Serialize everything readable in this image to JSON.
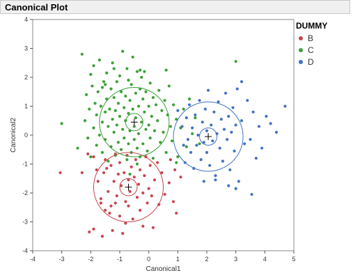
{
  "title": "Canonical Plot",
  "legend": {
    "title": "DUMMY",
    "items": [
      {
        "label": "B",
        "color": "#c8444d"
      },
      {
        "label": "C",
        "color": "#3aa135"
      },
      {
        "label": "D",
        "color": "#4472c4"
      }
    ]
  },
  "chart_data": {
    "type": "scatter",
    "xlabel": "Canonical1",
    "ylabel": "Canonical2",
    "xlim": [
      -4,
      5
    ],
    "ylim": [
      -4,
      4
    ],
    "xticks": [
      -4,
      -3,
      -2,
      -1,
      0,
      1,
      2,
      3,
      4,
      5
    ],
    "yticks": [
      -4,
      -3,
      -2,
      -1,
      0,
      1,
      2,
      3,
      4
    ],
    "grid": false,
    "legend_position": "right",
    "group_means": [
      {
        "group": "B",
        "x": -0.7,
        "y": -1.8,
        "inner_radius": 0.3,
        "outer_radius": 1.2
      },
      {
        "group": "C",
        "x": -0.5,
        "y": 0.45,
        "inner_radius": 0.3,
        "outer_radius": 1.2
      },
      {
        "group": "D",
        "x": 2.05,
        "y": -0.05,
        "inner_radius": 0.3,
        "outer_radius": 1.2
      }
    ],
    "series": [
      {
        "name": "B",
        "points": [
          [
            -3.05,
            -1.3
          ],
          [
            -2.3,
            -1.3
          ],
          [
            -2.1,
            -0.65
          ],
          [
            -2.05,
            -3.35
          ],
          [
            -1.9,
            -3.25
          ],
          [
            -1.9,
            -0.75
          ],
          [
            -1.8,
            -1.2
          ],
          [
            -1.75,
            -1.6
          ],
          [
            -1.65,
            -2.2
          ],
          [
            -1.6,
            -3.5
          ],
          [
            -1.55,
            -1.3
          ],
          [
            -1.5,
            -0.85
          ],
          [
            -1.5,
            -2.6
          ],
          [
            -1.45,
            -1.15
          ],
          [
            -1.4,
            -1.95
          ],
          [
            -1.35,
            -2.7
          ],
          [
            -1.3,
            -1.05
          ],
          [
            -1.25,
            -3.3
          ],
          [
            -1.2,
            -1.6
          ],
          [
            -1.15,
            -2.35
          ],
          [
            -1.15,
            -0.65
          ],
          [
            -1.1,
            -2.1
          ],
          [
            -1.05,
            -1.35
          ],
          [
            -1.0,
            -2.8
          ],
          [
            -1.0,
            -0.95
          ],
          [
            -0.95,
            -1.75
          ],
          [
            -0.9,
            -3.4
          ],
          [
            -0.85,
            -1.3
          ],
          [
            -0.8,
            -2.3
          ],
          [
            -0.75,
            -0.7
          ],
          [
            -0.7,
            -1.55
          ],
          [
            -0.7,
            -2.45
          ],
          [
            -0.65,
            -1.95
          ],
          [
            -0.6,
            -1.1
          ],
          [
            -0.55,
            -2.9
          ],
          [
            -0.5,
            -1.45
          ],
          [
            -0.45,
            -0.85
          ],
          [
            -0.4,
            -2.15
          ],
          [
            -0.35,
            -1.7
          ],
          [
            -0.3,
            -2.6
          ],
          [
            -0.3,
            -1.2
          ],
          [
            -0.2,
            -2.0
          ],
          [
            -0.15,
            -1.4
          ],
          [
            -0.1,
            -0.75
          ],
          [
            -0.05,
            -2.35
          ],
          [
            0.0,
            -1.85
          ],
          [
            0.05,
            -1.05
          ],
          [
            0.1,
            -2.1
          ],
          [
            0.15,
            -3.2
          ],
          [
            0.2,
            -1.55
          ],
          [
            0.3,
            -0.95
          ],
          [
            0.35,
            -2.4
          ],
          [
            0.45,
            -1.3
          ],
          [
            0.55,
            -2.05
          ],
          [
            0.7,
            -1.65
          ],
          [
            0.75,
            -0.85
          ],
          [
            0.85,
            -2.3
          ],
          [
            0.9,
            -1.2
          ],
          [
            0.95,
            -2.7
          ],
          [
            1.1,
            -1.45
          ],
          [
            -0.2,
            -3.15
          ],
          [
            -1.3,
            -2.45
          ],
          [
            -0.8,
            -3.05
          ],
          [
            -1.65,
            -2.35
          ]
        ]
      },
      {
        "name": "C",
        "points": [
          [
            -3.0,
            0.4
          ],
          [
            -2.45,
            -0.45
          ],
          [
            -2.3,
            2.8
          ],
          [
            -2.2,
            0.5
          ],
          [
            -2.15,
            1.4
          ],
          [
            -2.1,
            -0.1
          ],
          [
            -2.05,
            0.9
          ],
          [
            -2.0,
            2.1
          ],
          [
            -2.0,
            -0.75
          ],
          [
            -1.95,
            1.7
          ],
          [
            -1.9,
            0.25
          ],
          [
            -1.9,
            2.4
          ],
          [
            -1.85,
            1.1
          ],
          [
            -1.8,
            -0.35
          ],
          [
            -1.8,
            0.7
          ],
          [
            -1.75,
            1.5
          ],
          [
            -1.7,
            2.6
          ],
          [
            -1.7,
            0.0
          ],
          [
            -1.65,
            1.0
          ],
          [
            -1.6,
            -0.6
          ],
          [
            -1.6,
            0.45
          ],
          [
            -1.55,
            1.85
          ],
          [
            -1.5,
            0.8
          ],
          [
            -1.5,
            -0.15
          ],
          [
            -1.45,
            2.15
          ],
          [
            -1.45,
            1.25
          ],
          [
            -1.4,
            0.3
          ],
          [
            -1.4,
            -0.9
          ],
          [
            -1.35,
            0.9
          ],
          [
            -1.3,
            1.6
          ],
          [
            -1.3,
            -0.4
          ],
          [
            -1.25,
            0.55
          ],
          [
            -1.25,
            2.5
          ],
          [
            -1.2,
            1.3
          ],
          [
            -1.2,
            0.1
          ],
          [
            -1.15,
            -0.7
          ],
          [
            -1.15,
            0.85
          ],
          [
            -1.1,
            1.85
          ],
          [
            -1.1,
            0.35
          ],
          [
            -1.05,
            -0.25
          ],
          [
            -1.05,
            1.1
          ],
          [
            -1.0,
            2.05
          ],
          [
            -1.0,
            0.65
          ],
          [
            -0.95,
            -0.5
          ],
          [
            -0.95,
            1.5
          ],
          [
            -0.9,
            0.2
          ],
          [
            -0.9,
            2.9
          ],
          [
            -0.85,
            0.95
          ],
          [
            -0.85,
            -0.1
          ],
          [
            -0.8,
            1.35
          ],
          [
            -0.8,
            0.5
          ],
          [
            -0.75,
            -0.85
          ],
          [
            -0.75,
            2.3
          ],
          [
            -0.7,
            0.75
          ],
          [
            -0.7,
            -0.3
          ],
          [
            -0.65,
            1.2
          ],
          [
            -0.65,
            0.15
          ],
          [
            -0.6,
            1.75
          ],
          [
            -0.6,
            -0.6
          ],
          [
            -0.55,
            0.9
          ],
          [
            -0.55,
            2.7
          ],
          [
            -0.5,
            0.3
          ],
          [
            -0.5,
            -0.15
          ],
          [
            -0.45,
            1.45
          ],
          [
            -0.45,
            0.6
          ],
          [
            -0.4,
            -0.45
          ],
          [
            -0.4,
            2.2
          ],
          [
            -0.35,
            1.0
          ],
          [
            -0.35,
            0.05
          ],
          [
            -0.3,
            1.6
          ],
          [
            -0.3,
            -0.75
          ],
          [
            -0.25,
            0.45
          ],
          [
            -0.25,
            2.0
          ],
          [
            -0.2,
            1.25
          ],
          [
            -0.2,
            -0.3
          ],
          [
            -0.15,
            0.8
          ],
          [
            -0.15,
            2.2
          ],
          [
            -0.1,
            0.2
          ],
          [
            -0.1,
            1.5
          ],
          [
            -0.05,
            -0.55
          ],
          [
            0.0,
            1.0
          ],
          [
            0.0,
            0.35
          ],
          [
            0.05,
            1.8
          ],
          [
            0.05,
            -0.1
          ],
          [
            0.1,
            0.65
          ],
          [
            0.15,
            1.3
          ],
          [
            0.15,
            -0.8
          ],
          [
            0.2,
            0.15
          ],
          [
            0.25,
            1.05
          ],
          [
            0.3,
            0.5
          ],
          [
            0.35,
            1.55
          ],
          [
            0.4,
            -0.25
          ],
          [
            0.45,
            0.85
          ],
          [
            0.5,
            0.1
          ],
          [
            0.55,
            1.2
          ],
          [
            0.6,
            -0.6
          ],
          [
            0.65,
            0.7
          ],
          [
            0.7,
            1.7
          ],
          [
            0.75,
            0.3
          ],
          [
            0.8,
            -0.2
          ],
          [
            0.85,
            1.05
          ],
          [
            0.95,
            0.55
          ],
          [
            1.0,
            -0.75
          ],
          [
            1.1,
            0.25
          ],
          [
            1.2,
            0.9
          ],
          [
            1.3,
            -0.4
          ],
          [
            1.4,
            1.25
          ],
          [
            1.5,
            0.05
          ],
          [
            1.6,
            0.6
          ],
          [
            1.75,
            -0.3
          ],
          [
            -1.6,
            1.65
          ],
          [
            -0.3,
            2.25
          ],
          [
            -1.2,
            2.3
          ],
          [
            -1.5,
            1.75
          ],
          [
            -0.7,
            1.9
          ],
          [
            0.6,
            2.25
          ],
          [
            -0.65,
            -1.35
          ],
          [
            -0.4,
            -1.0
          ],
          [
            0.95,
            -0.95
          ],
          [
            3.0,
            2.55
          ]
        ]
      },
      {
        "name": "D",
        "points": [
          [
            1.0,
            0.85
          ],
          [
            1.15,
            0.3
          ],
          [
            1.2,
            -0.35
          ],
          [
            1.25,
            -0.95
          ],
          [
            1.3,
            0.6
          ],
          [
            1.35,
            -0.15
          ],
          [
            1.4,
            1.05
          ],
          [
            1.45,
            -0.6
          ],
          [
            1.5,
            0.25
          ],
          [
            1.55,
            -1.15
          ],
          [
            1.6,
            0.7
          ],
          [
            1.65,
            -0.35
          ],
          [
            1.7,
            0.0
          ],
          [
            1.75,
            1.2
          ],
          [
            1.8,
            -0.85
          ],
          [
            1.85,
            0.45
          ],
          [
            1.9,
            -0.25
          ],
          [
            1.9,
            -1.6
          ],
          [
            1.95,
            0.9
          ],
          [
            2.0,
            0.15
          ],
          [
            2.0,
            -0.6
          ],
          [
            2.05,
            1.55
          ],
          [
            2.1,
            -1.05
          ],
          [
            2.15,
            0.35
          ],
          [
            2.2,
            -0.2
          ],
          [
            2.25,
            0.8
          ],
          [
            2.3,
            -1.4
          ],
          [
            2.35,
            0.05
          ],
          [
            2.4,
            1.15
          ],
          [
            2.45,
            -0.45
          ],
          [
            2.5,
            0.55
          ],
          [
            2.55,
            -0.9
          ],
          [
            2.6,
            0.2
          ],
          [
            2.65,
            1.45
          ],
          [
            2.7,
            -0.15
          ],
          [
            2.75,
            0.65
          ],
          [
            2.8,
            -1.2
          ],
          [
            2.85,
            0.1
          ],
          [
            2.9,
            0.95
          ],
          [
            2.95,
            -0.55
          ],
          [
            3.0,
            0.35
          ],
          [
            3.05,
            1.6
          ],
          [
            3.1,
            -1.6
          ],
          [
            3.2,
            0.5
          ],
          [
            3.3,
            -0.3
          ],
          [
            3.4,
            1.2
          ],
          [
            3.5,
            -0.15
          ],
          [
            3.6,
            0.8
          ],
          [
            3.7,
            -0.8
          ],
          [
            3.8,
            0.3
          ],
          [
            3.9,
            -0.45
          ],
          [
            4.05,
            0.65
          ],
          [
            4.2,
            0.4
          ],
          [
            4.4,
            0.1
          ],
          [
            4.7,
            1.0
          ],
          [
            3.55,
            -2.05
          ],
          [
            2.75,
            -1.75
          ],
          [
            2.3,
            -1.55
          ],
          [
            3.2,
            1.85
          ],
          [
            3.0,
            -1.85
          ]
        ]
      }
    ]
  }
}
